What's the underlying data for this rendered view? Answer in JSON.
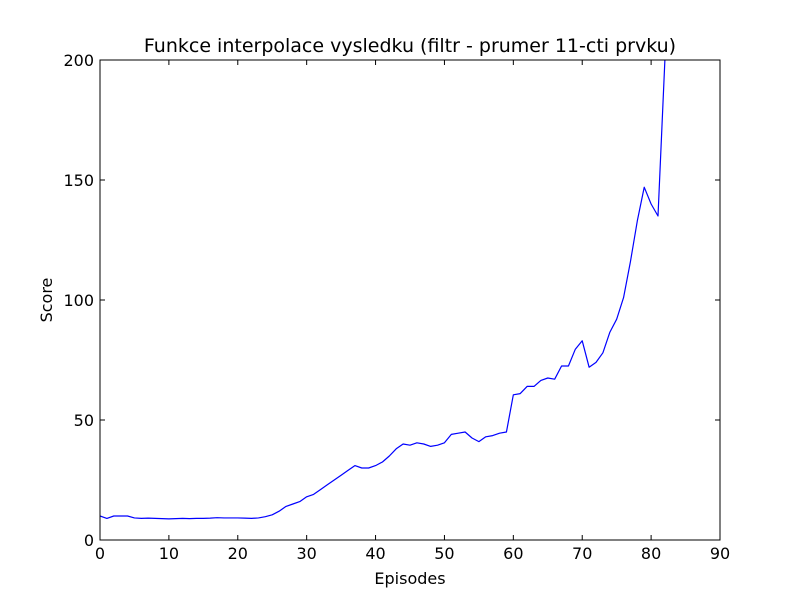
{
  "chart_data": {
    "type": "line",
    "title": "Funkce interpolace vysledku  (filtr - prumer 11-cti prvku)",
    "xlabel": "Episodes",
    "ylabel": "Score",
    "xlim": [
      0,
      90
    ],
    "ylim": [
      0,
      200
    ],
    "xticks": [
      0,
      10,
      20,
      30,
      40,
      50,
      60,
      70,
      80,
      90
    ],
    "yticks": [
      0,
      50,
      100,
      150,
      200
    ],
    "grid": false,
    "series": [
      {
        "color": "#0000ff",
        "x": [
          0,
          1,
          2,
          3,
          4,
          5,
          6,
          7,
          8,
          9,
          10,
          11,
          12,
          13,
          14,
          15,
          16,
          17,
          18,
          19,
          20,
          21,
          22,
          23,
          24,
          25,
          26,
          27,
          28,
          29,
          30,
          31,
          32,
          33,
          34,
          35,
          36,
          37,
          38,
          39,
          40,
          41,
          42,
          43,
          44,
          45,
          46,
          47,
          48,
          49,
          50,
          51,
          52,
          53,
          54,
          55,
          56,
          57,
          58,
          59,
          60,
          61,
          62,
          63,
          64,
          65,
          66,
          67,
          68,
          69,
          70,
          71,
          72,
          73,
          74,
          75,
          76,
          77,
          78,
          79,
          80,
          81,
          82
        ],
        "y": [
          10.0,
          9.0,
          10.0,
          10.0,
          10.0,
          9.2,
          9.0,
          9.1,
          9.0,
          8.9,
          8.8,
          8.9,
          9.0,
          8.9,
          9.0,
          9.0,
          9.1,
          9.3,
          9.2,
          9.2,
          9.2,
          9.1,
          9.0,
          9.2,
          9.7,
          10.5,
          12.0,
          14.0,
          15.0,
          16.0,
          18.0,
          19.0,
          21.0,
          23.0,
          25.0,
          27.0,
          29.0,
          31.0,
          30.0,
          30.0,
          31.0,
          32.5,
          35.0,
          38.0,
          40.0,
          39.5,
          40.5,
          40.0,
          39.0,
          39.5,
          40.5,
          44.0,
          44.5,
          45.0,
          42.5,
          41.0,
          43.0,
          43.5,
          44.5,
          45.0,
          60.5,
          61.0,
          64.0,
          64.0,
          66.5,
          67.5,
          67.0,
          72.5,
          72.5,
          79.5,
          83.0,
          72.0,
          74.0,
          78.0,
          86.5,
          92.0,
          101.0,
          116.0,
          133.0,
          147.0,
          140.0,
          135.0,
          200.0
        ]
      }
    ]
  }
}
